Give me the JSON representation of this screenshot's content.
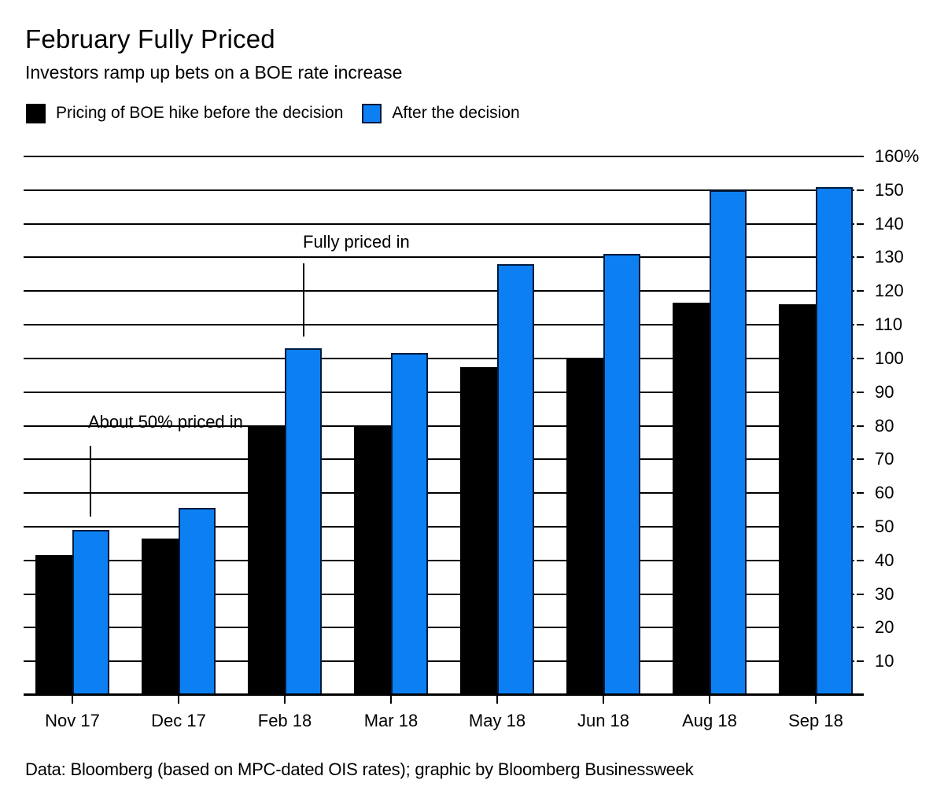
{
  "header": {
    "title": "February Fully Priced",
    "subtitle": "Investors ramp up bets on a BOE rate increase"
  },
  "legend": {
    "before_label": "Pricing of BOE hike before the decision",
    "after_label": "After the decision"
  },
  "colors": {
    "before": "#000000",
    "after": "#0c80f2",
    "after_border": "#001a3d",
    "grid": "#000000"
  },
  "annotations": [
    {
      "text": "Fully priced in",
      "target": "Feb 18 after-the-decision bar"
    },
    {
      "text": "About 50% priced in",
      "target": "Nov 17 after-the-decision bar"
    }
  ],
  "chart_data": {
    "type": "bar",
    "title": "February Fully Priced",
    "subtitle": "Investors ramp up bets on a BOE rate increase",
    "categories": [
      "Nov 17",
      "Dec 17",
      "Feb 18",
      "Mar 18",
      "May 18",
      "Jun 18",
      "Aug 18",
      "Sep 18"
    ],
    "series": [
      {
        "name": "Pricing of BOE hike before the decision",
        "color": "#000000",
        "values": [
          41.5,
          46.5,
          80,
          80,
          97.5,
          100,
          116.5,
          116
        ]
      },
      {
        "name": "After the decision",
        "color": "#0c80f2",
        "values": [
          49,
          55.5,
          103,
          101.5,
          128,
          131,
          150,
          151
        ]
      }
    ],
    "ylim": [
      0,
      160
    ],
    "y_ticks": [
      10,
      20,
      30,
      40,
      50,
      60,
      70,
      80,
      90,
      100,
      110,
      120,
      130,
      140,
      150,
      160
    ],
    "y_tick_labels": [
      "10",
      "20",
      "30",
      "40",
      "50",
      "60",
      "70",
      "80",
      "90",
      "100",
      "110",
      "120",
      "130",
      "140",
      "150",
      "160%"
    ],
    "unit": "%",
    "grid": true,
    "legend_position": "top-left",
    "y_axis_side": "right"
  },
  "footer": {
    "source": "Data: Bloomberg (based on MPC-dated OIS rates); graphic by Bloomberg Businessweek"
  }
}
